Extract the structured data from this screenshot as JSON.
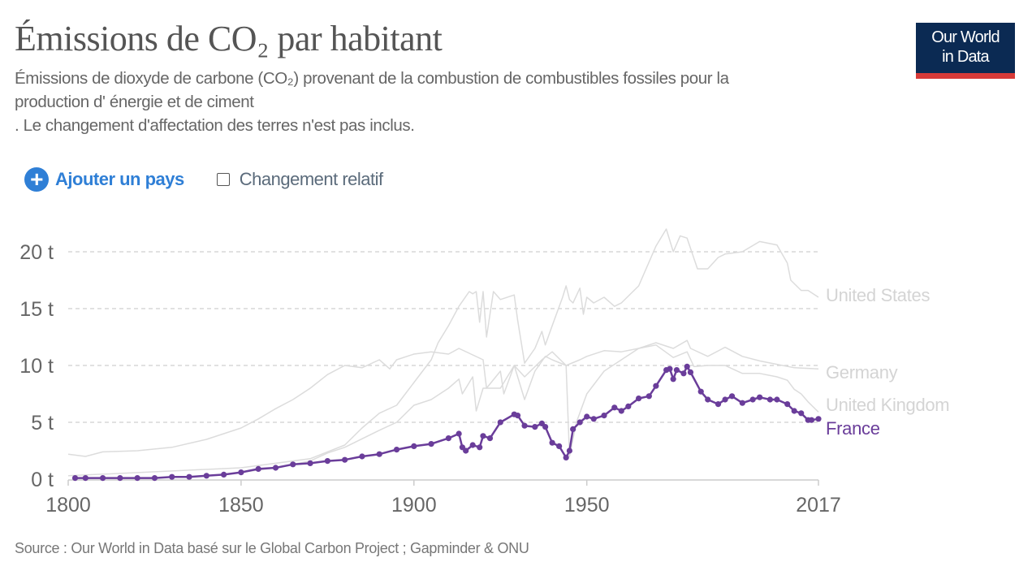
{
  "header": {
    "title": "Émissions de CO₂ par habitant",
    "subtitle_lines": [
      "Émissions de dioxyde de carbone (CO₂) provenant de la combustion de combustibles fossiles pour la",
      "production d' énergie et de ciment",
      ". Le changement d'affectation des terres n'est pas inclus."
    ],
    "logo": [
      "Our World",
      "in Data"
    ]
  },
  "controls": {
    "add_country": "Ajouter un pays",
    "add_icon": "plus-circle-icon",
    "relative_change": "Changement relatif",
    "relative_change_checked": false
  },
  "footer": {
    "source": "Source : Our World in Data basé sur le Global Carbon Project ; Gapminder & ONU"
  },
  "chart_data": {
    "type": "line",
    "title": "Émissions de CO₂ par habitant",
    "xlim": [
      1800,
      2017
    ],
    "ylim": [
      0,
      22
    ],
    "x_ticks": [
      "1800",
      "1850",
      "1900",
      "1950",
      "2017"
    ],
    "y_ticks": [
      "0 t",
      "5 t",
      "10 t",
      "15 t",
      "20 t"
    ],
    "y_tick_values": [
      0,
      5,
      10,
      15,
      20
    ],
    "grid": "horizontal dashed",
    "legend": "inline labels at line ends (right)",
    "series": [
      {
        "name": "United States",
        "color": "#dcdcdc",
        "highlighted": false,
        "x": [
          1800,
          1850,
          1870,
          1880,
          1885,
          1890,
          1895,
          1900,
          1905,
          1907,
          1910,
          1913,
          1916,
          1917,
          1918,
          1919,
          1920,
          1921,
          1923,
          1925,
          1929,
          1930,
          1932,
          1935,
          1937,
          1938,
          1940,
          1943,
          1944,
          1945,
          1946,
          1948,
          1949,
          1950,
          1952,
          1955,
          1958,
          1960,
          1965,
          1970,
          1973,
          1975,
          1977,
          1979,
          1982,
          1985,
          1988,
          1990,
          1995,
          2000,
          2005,
          2008,
          2009,
          2012,
          2014,
          2017
        ],
        "y": [
          0.3,
          1.0,
          1.8,
          3.0,
          4.5,
          5.8,
          6.5,
          8.5,
          10.5,
          12.0,
          13.5,
          15.2,
          16.5,
          16.3,
          16.5,
          13.8,
          16.5,
          12.5,
          16.5,
          15.8,
          16.2,
          14.0,
          10.2,
          11.5,
          13.0,
          11.8,
          13.5,
          16.0,
          17.0,
          15.8,
          15.5,
          16.8,
          14.5,
          16.0,
          15.5,
          16.0,
          15.2,
          15.5,
          17.0,
          20.5,
          22.0,
          20.0,
          21.4,
          21.2,
          18.5,
          18.5,
          19.5,
          19.8,
          20.0,
          20.9,
          20.6,
          19.0,
          17.5,
          16.6,
          16.6,
          16.0
        ]
      },
      {
        "name": "Germany",
        "color": "#dcdcdc",
        "highlighted": false,
        "x": [
          1850,
          1860,
          1870,
          1875,
          1880,
          1890,
          1895,
          1900,
          1905,
          1910,
          1913,
          1914,
          1917,
          1918,
          1920,
          1925,
          1929,
          1932,
          1935,
          1938,
          1940,
          1944,
          1945,
          1947,
          1950,
          1955,
          1960,
          1965,
          1970,
          1975,
          1979,
          1980,
          1985,
          1990,
          1995,
          2000,
          2005,
          2010,
          2017
        ],
        "y": [
          0.6,
          1.0,
          1.6,
          2.3,
          2.8,
          4.3,
          5.0,
          6.5,
          7.0,
          8.0,
          8.8,
          7.5,
          9.0,
          6.0,
          8.0,
          8.0,
          10.0,
          7.0,
          9.5,
          10.8,
          10.5,
          10.0,
          2.0,
          5.0,
          7.5,
          9.5,
          10.5,
          11.5,
          12.0,
          11.5,
          12.2,
          11.5,
          10.8,
          11.6,
          10.8,
          10.4,
          10.1,
          9.8,
          9.7
        ]
      },
      {
        "name": "United Kingdom",
        "color": "#dcdcdc",
        "highlighted": false,
        "x": [
          1800,
          1805,
          1810,
          1820,
          1830,
          1840,
          1850,
          1855,
          1860,
          1865,
          1870,
          1875,
          1880,
          1885,
          1890,
          1893,
          1895,
          1900,
          1905,
          1910,
          1913,
          1920,
          1921,
          1925,
          1926,
          1929,
          1932,
          1937,
          1940,
          1944,
          1948,
          1950,
          1955,
          1960,
          1965,
          1970,
          1975,
          1979,
          1981,
          1985,
          1990,
          1995,
          2000,
          2005,
          2008,
          2010,
          2012,
          2014,
          2017
        ],
        "y": [
          2.2,
          2.0,
          2.4,
          2.5,
          2.8,
          3.5,
          4.5,
          5.3,
          6.2,
          7.0,
          8.0,
          9.2,
          10.0,
          9.8,
          10.5,
          9.7,
          10.5,
          11.0,
          11.2,
          11.0,
          11.5,
          10.5,
          8.0,
          9.5,
          7.5,
          10.0,
          9.0,
          10.5,
          11.2,
          10.0,
          10.5,
          10.8,
          11.3,
          11.2,
          11.5,
          11.8,
          10.7,
          11.2,
          9.9,
          10.0,
          10.0,
          9.3,
          9.3,
          9.0,
          8.7,
          7.9,
          7.5,
          6.8,
          5.9
        ]
      },
      {
        "name": "France",
        "color": "#6a3d9a",
        "highlighted": true,
        "x": [
          1802,
          1805,
          1810,
          1815,
          1820,
          1825,
          1830,
          1835,
          1840,
          1845,
          1850,
          1855,
          1860,
          1865,
          1870,
          1875,
          1880,
          1885,
          1890,
          1895,
          1900,
          1905,
          1910,
          1913,
          1914,
          1915,
          1917,
          1919,
          1920,
          1922,
          1925,
          1929,
          1930,
          1932,
          1935,
          1937,
          1938,
          1940,
          1942,
          1944,
          1945,
          1946,
          1948,
          1950,
          1952,
          1955,
          1958,
          1960,
          1962,
          1965,
          1968,
          1970,
          1973,
          1974,
          1975,
          1976,
          1978,
          1979,
          1980,
          1983,
          1985,
          1988,
          1990,
          1992,
          1995,
          1998,
          2000,
          2003,
          2005,
          2008,
          2010,
          2012,
          2014,
          2015,
          2017
        ],
        "y": [
          0.1,
          0.1,
          0.1,
          0.1,
          0.1,
          0.1,
          0.2,
          0.2,
          0.3,
          0.4,
          0.6,
          0.9,
          1.0,
          1.3,
          1.4,
          1.6,
          1.7,
          2.0,
          2.2,
          2.6,
          2.9,
          3.1,
          3.6,
          4.0,
          2.8,
          2.5,
          3.0,
          2.8,
          3.8,
          3.6,
          5.0,
          5.7,
          5.6,
          4.7,
          4.6,
          4.9,
          4.6,
          3.2,
          2.9,
          1.9,
          2.5,
          4.4,
          5.0,
          5.5,
          5.3,
          5.6,
          6.3,
          6.0,
          6.4,
          7.1,
          7.3,
          8.2,
          9.6,
          9.7,
          8.8,
          9.6,
          9.3,
          9.9,
          9.4,
          7.7,
          7.0,
          6.6,
          7.0,
          7.3,
          6.7,
          7.0,
          7.2,
          7.0,
          7.0,
          6.6,
          6.0,
          5.8,
          5.2,
          5.2,
          5.3
        ]
      }
    ]
  }
}
